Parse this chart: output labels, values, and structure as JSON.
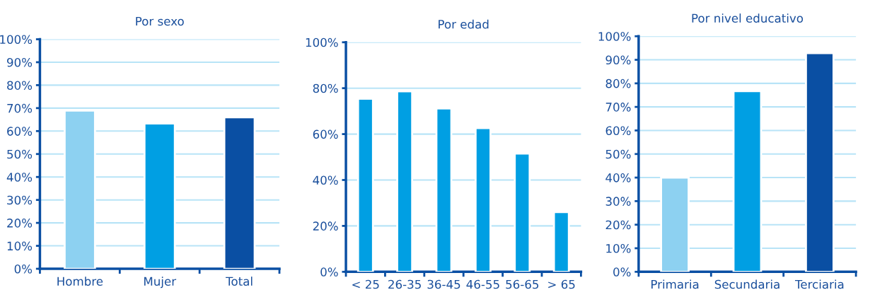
{
  "chart_data": [
    {
      "type": "bar",
      "title": "Por sexo",
      "categories": [
        "Hombre",
        "Mujer",
        "Total"
      ],
      "values": [
        68.9,
        63.3,
        66.0
      ],
      "colors": [
        "#8dd1f1",
        "#009fe3",
        "#0a4fa3"
      ],
      "ylim": [
        0,
        100
      ],
      "yticks": [
        {
          "value": 0,
          "label": "0%"
        },
        {
          "value": 10,
          "label": "10%"
        },
        {
          "value": 20,
          "label": "20%"
        },
        {
          "value": 30,
          "label": "30%"
        },
        {
          "value": 40,
          "label": "40%"
        },
        {
          "value": 50,
          "label": "50%"
        },
        {
          "value": 60,
          "label": "60%"
        },
        {
          "value": 70,
          "label": "70%"
        },
        {
          "value": 80,
          "label": "80%"
        },
        {
          "value": 90,
          "label": "90%"
        },
        {
          "value": 100,
          "label": "100%"
        }
      ],
      "grid": "y"
    },
    {
      "type": "bar",
      "title": "Por edad",
      "categories": [
        "< 25",
        "26-35",
        "36-45",
        "46-55",
        "56-65",
        "> 65"
      ],
      "values": [
        75.4,
        78.6,
        71.2,
        62.6,
        51.5,
        26.0
      ],
      "color": "#009fe3",
      "ylim": [
        0,
        100
      ],
      "yticks": [
        {
          "value": 0,
          "label": "0%"
        },
        {
          "value": 20,
          "label": "20%"
        },
        {
          "value": 40,
          "label": "40%"
        },
        {
          "value": 60,
          "label": "60%"
        },
        {
          "value": 80,
          "label": "80%"
        },
        {
          "value": 100,
          "label": "100%"
        }
      ],
      "grid": "y"
    },
    {
      "type": "bar",
      "title": "Por nivel educativo",
      "categories": [
        "Primaria",
        "Secundaria",
        "Terciaria"
      ],
      "values": [
        40.0,
        76.7,
        92.8
      ],
      "colors": [
        "#8dd1f1",
        "#009fe3",
        "#0a4fa3"
      ],
      "ylim": [
        0,
        100
      ],
      "yticks": [
        {
          "value": 0,
          "label": "0%"
        },
        {
          "value": 10,
          "label": "10%"
        },
        {
          "value": 20,
          "label": "20%"
        },
        {
          "value": 30,
          "label": "30%"
        },
        {
          "value": 40,
          "label": "40%"
        },
        {
          "value": 50,
          "label": "50%"
        },
        {
          "value": 60,
          "label": "60%"
        },
        {
          "value": 70,
          "label": "70%"
        },
        {
          "value": 80,
          "label": "80%"
        },
        {
          "value": 90,
          "label": "90%"
        },
        {
          "value": 100,
          "label": "100%"
        }
      ],
      "grid": "y"
    }
  ]
}
